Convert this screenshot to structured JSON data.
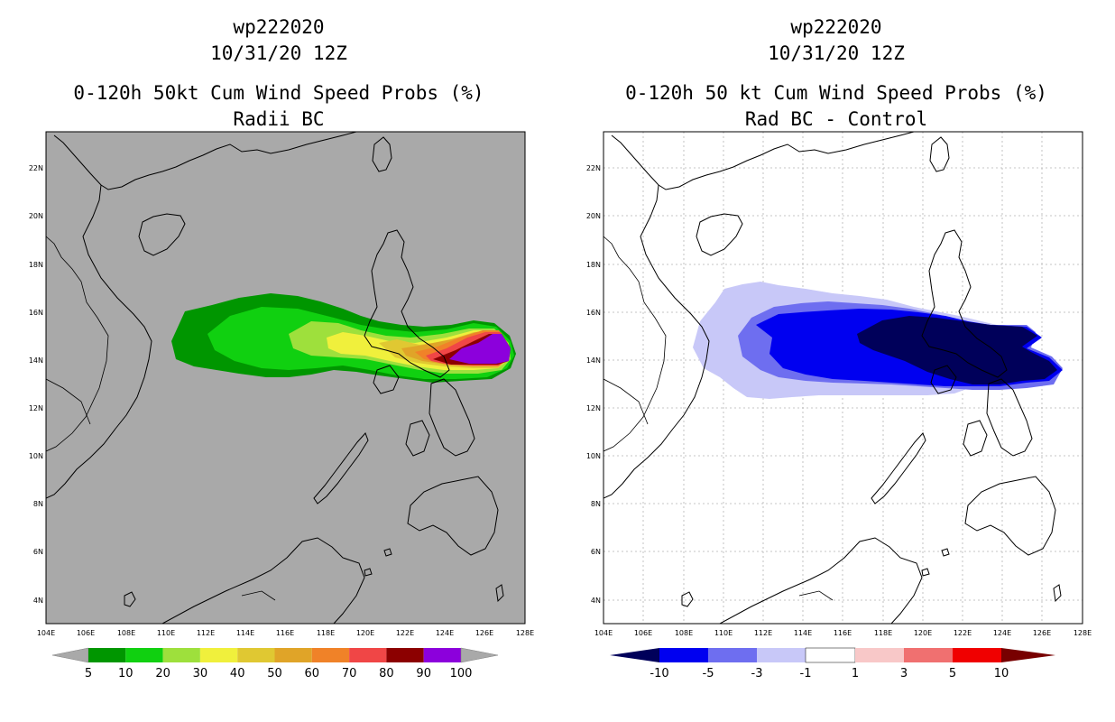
{
  "left": {
    "title_line1": "wp222020",
    "title_line2": "10/31/20 12Z",
    "title_line3": "0-120h 50kt Cum Wind Speed Probs (%)",
    "title_line4": "Radii BC",
    "background": "#a9a9a9",
    "colorbar": {
      "colors": [
        "#009600",
        "#10d010",
        "#9ee03c",
        "#f0f03c",
        "#e0c832",
        "#e0a428",
        "#f08228",
        "#f04646",
        "#8c0000",
        "#8c00dc"
      ],
      "labels": [
        "5",
        "10",
        "20",
        "30",
        "40",
        "50",
        "60",
        "70",
        "80",
        "90",
        "100"
      ]
    }
  },
  "right": {
    "title_line1": "wp222020",
    "title_line2": "10/31/20 12Z",
    "title_line3": "0-120h 50 kt Cum Wind Speed Probs (%)",
    "title_line4": "Rad BC - Control",
    "background": "#ffffff",
    "colorbar": {
      "colors": [
        "#00005a",
        "#0000f0",
        "#6e6ef0",
        "#c8c8f8",
        "#ffffff",
        "#f8c8c8",
        "#f07070",
        "#f00000",
        "#780000"
      ],
      "labels": [
        "-10",
        "-5",
        "-3",
        "-1",
        "1",
        "3",
        "5",
        "10"
      ]
    }
  },
  "axes": {
    "x_ticks": [
      "104E",
      "106E",
      "108E",
      "110E",
      "112E",
      "114E",
      "116E",
      "118E",
      "120E",
      "122E",
      "124E",
      "126E",
      "128E"
    ],
    "y_ticks": [
      "22N",
      "20N",
      "18N",
      "16N",
      "14N",
      "12N",
      "10N",
      "8N",
      "6N",
      "4N"
    ]
  },
  "map_data": {
    "lon_range": [
      104,
      128
    ],
    "lat_range": [
      3,
      23.6
    ],
    "left_probability_contours_pct": [
      5,
      10,
      20,
      30,
      40,
      50,
      60,
      70,
      80,
      90,
      100
    ],
    "right_difference_contours_pct": [
      -10,
      -5,
      -3,
      -1,
      1,
      3,
      5,
      10
    ]
  }
}
